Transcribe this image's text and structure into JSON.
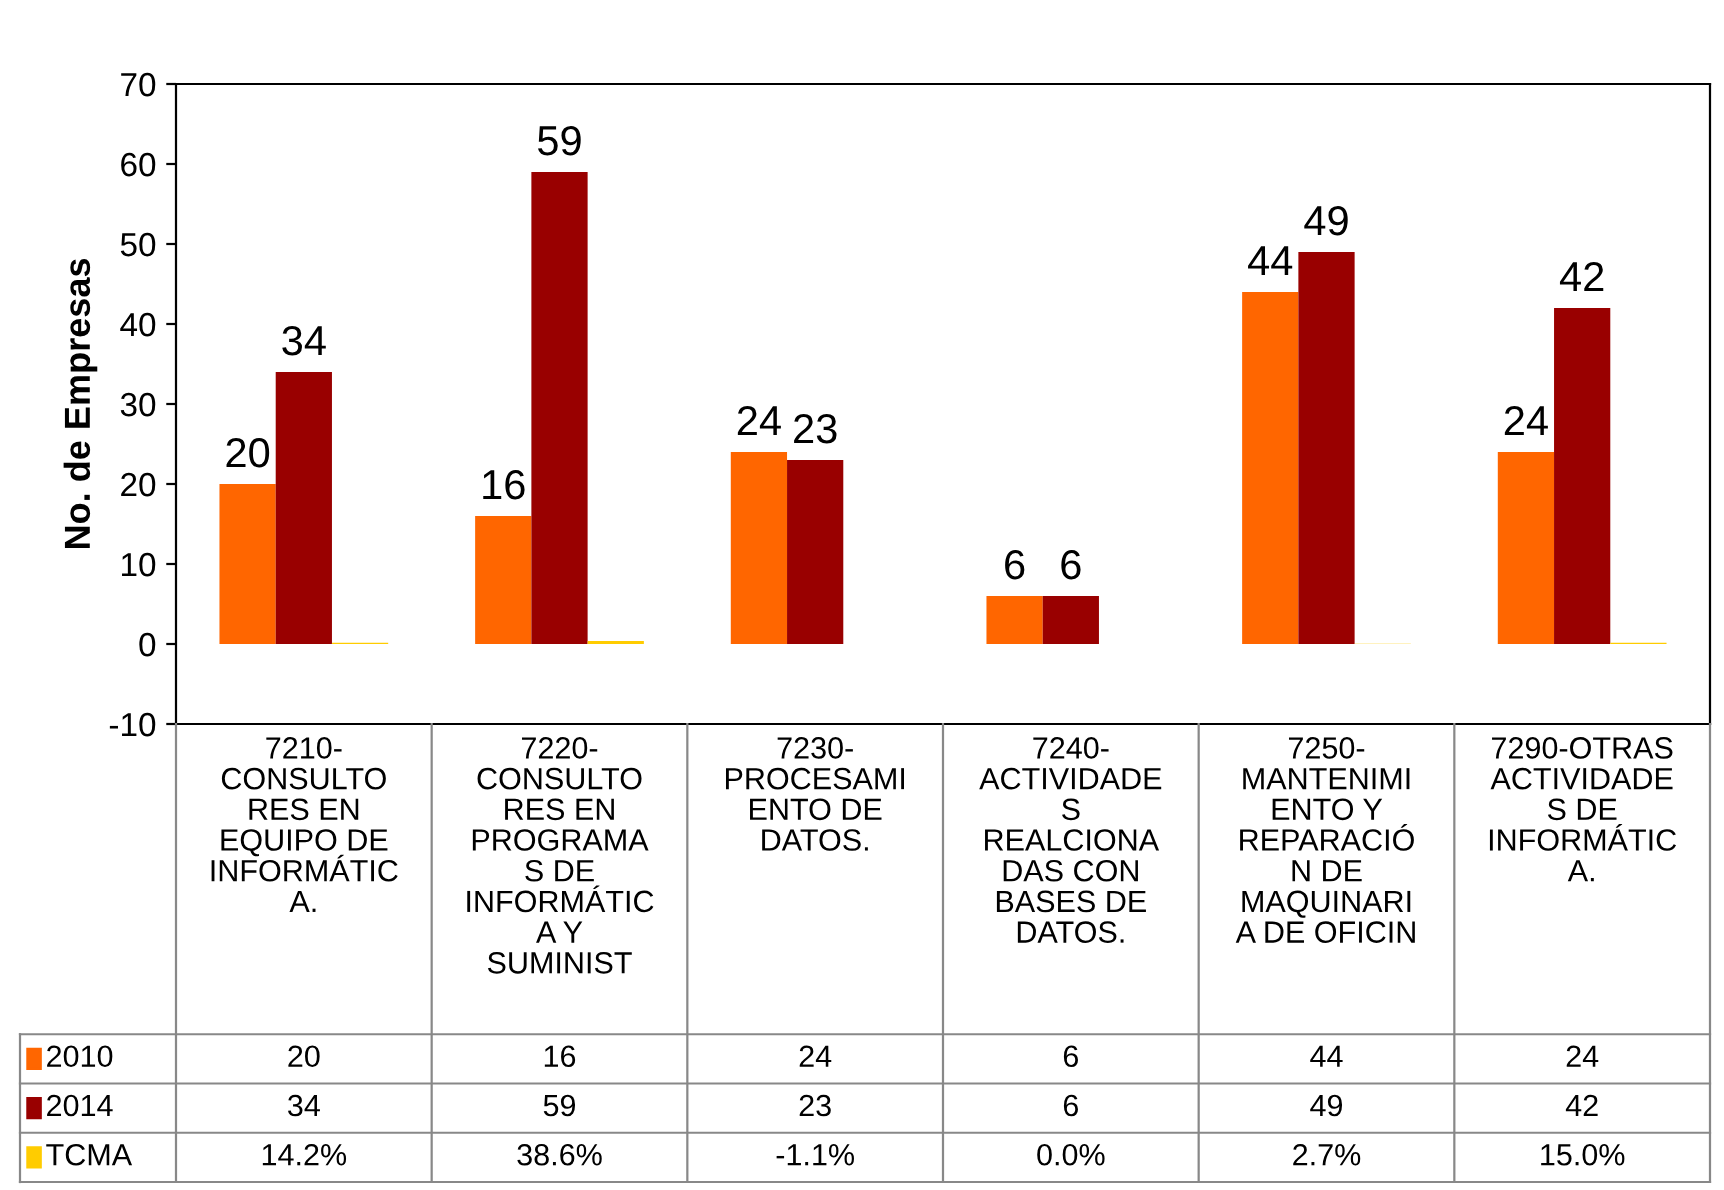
{
  "chart_data": {
    "type": "bar",
    "ylabel": "No. de Empresas",
    "categories": [
      "7210-\nCONSULTO\nRES EN\nEQUIPO DE\nINFORMÁTIC\nA.",
      "7220-\nCONSULTO\nRES EN\nPROGRAMA\nS DE\nINFORMÁTIC\nA Y\nSUMINIST",
      "7230-\nPROCESAMI\nENTO DE\nDATOS.",
      "7240-\nACTIVIDADE\nS\nREALCIONA\nDAS CON\nBASES DE\nDATOS.",
      "7250-\nMANTENIMI\nENTO Y\nREPARACIÓ\nN DE\nMAQUINARI\nA DE OFICIN",
      "7290-OTRAS\nACTIVIDADE\nS DE\nINFORMÁTIC\nA."
    ],
    "series": [
      {
        "name": "2010",
        "color": "#ff6600",
        "values": [
          20,
          16,
          24,
          6,
          44,
          24
        ],
        "value_labels": [
          "20",
          "16",
          "24",
          "6",
          "44",
          "24"
        ],
        "data_labels": true
      },
      {
        "name": "2014",
        "color": "#990000",
        "values": [
          34,
          59,
          23,
          6,
          49,
          42
        ],
        "value_labels": [
          "34",
          "59",
          "23",
          "6",
          "49",
          "42"
        ],
        "data_labels": true
      },
      {
        "name": "TCMA",
        "color": "#ffcc00",
        "values": [
          0.142,
          0.386,
          -0.011,
          0.0,
          0.027,
          0.15
        ],
        "value_labels": [
          "14.2%",
          "38.6%",
          "-1.1%",
          "0.0%",
          "2.7%",
          "15.0%"
        ]
      }
    ],
    "ylim": [
      -10,
      70
    ],
    "yticks": [
      -10,
      0,
      10,
      20,
      30,
      40,
      50,
      60,
      70
    ],
    "grid": false,
    "legend": "bottom left"
  }
}
